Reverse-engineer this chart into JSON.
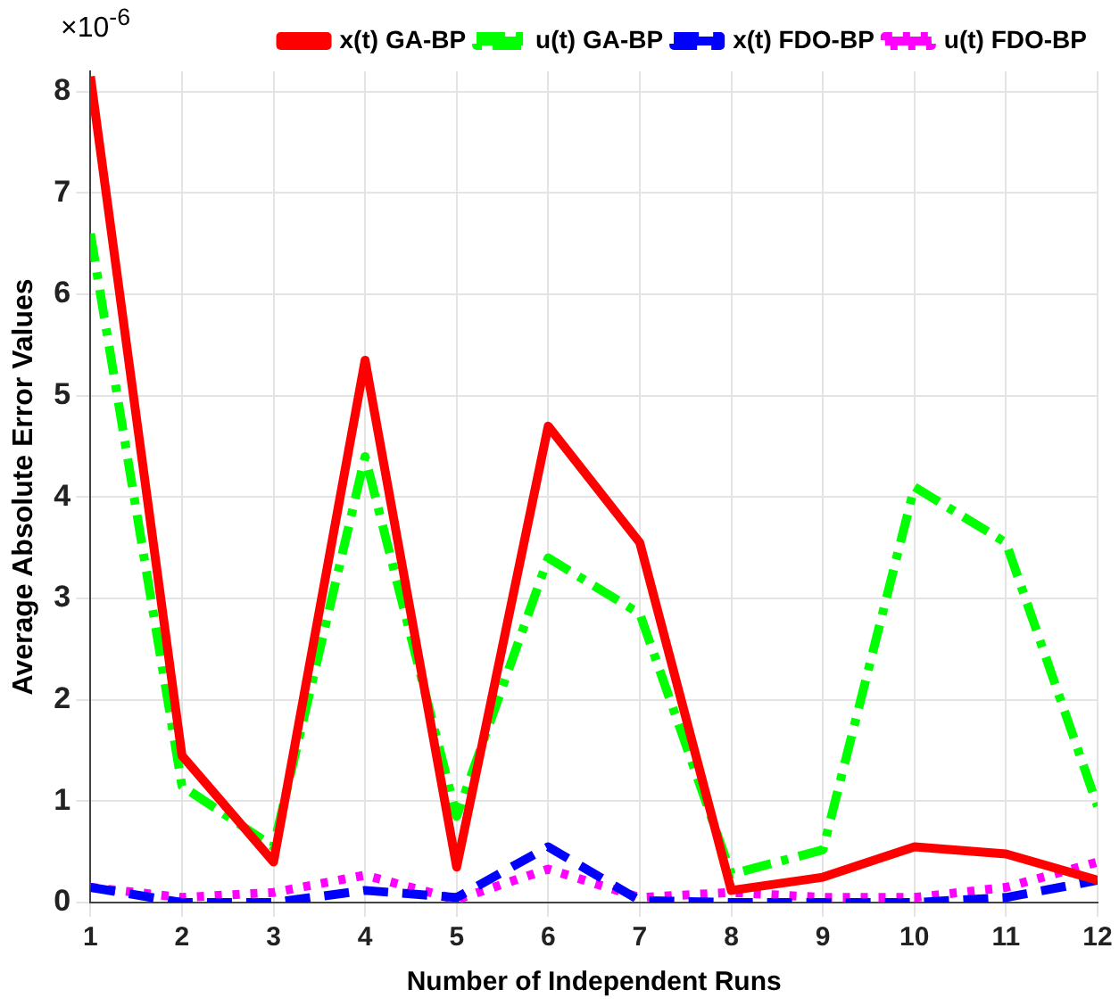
{
  "chart_data": {
    "type": "line",
    "xlabel": "Number of Independent Runs",
    "ylabel": "Average Absolute Error Values",
    "annotations": [
      "×10$^{-6}$"
    ],
    "x": [
      1,
      2,
      3,
      4,
      5,
      6,
      7,
      8,
      9,
      10,
      11,
      12
    ],
    "xlim": [
      1,
      12
    ],
    "xticks": [
      1,
      2,
      3,
      4,
      5,
      6,
      7,
      8,
      9,
      10,
      11,
      12
    ],
    "ylim": [
      0,
      8.2
    ],
    "yticks": [
      0,
      1,
      2,
      3,
      4,
      5,
      6,
      7,
      8
    ],
    "grid": true,
    "legend": "top right",
    "marker": "none",
    "series": [
      {
        "name": "x(t) GA-BP",
        "color": "#ff0000",
        "line_style": "solid",
        "values": [
          8.15,
          1.45,
          0.4,
          5.35,
          0.35,
          4.7,
          3.55,
          0.12,
          0.25,
          0.55,
          0.48,
          0.22
        ]
      },
      {
        "name": "u(t) GA-BP",
        "color": "#00ff00",
        "line_style": "dashdot",
        "values": [
          6.6,
          1.15,
          0.55,
          4.4,
          0.85,
          3.4,
          2.85,
          0.28,
          0.52,
          4.1,
          3.55,
          0.95
        ]
      },
      {
        "name": "x(t) FDO-BP",
        "color": "#0000ff",
        "line_style": "dashed",
        "values": [
          0.15,
          0.0,
          0.0,
          0.12,
          0.05,
          0.55,
          0.02,
          0.0,
          0.0,
          0.0,
          0.05,
          0.22
        ]
      },
      {
        "name": "u(t) FDO-BP",
        "color": "#ff00ff",
        "line_style": "dotted",
        "values": [
          0.15,
          0.05,
          0.1,
          0.27,
          0.03,
          0.33,
          0.05,
          0.1,
          0.05,
          0.05,
          0.15,
          0.4
        ]
      }
    ]
  }
}
